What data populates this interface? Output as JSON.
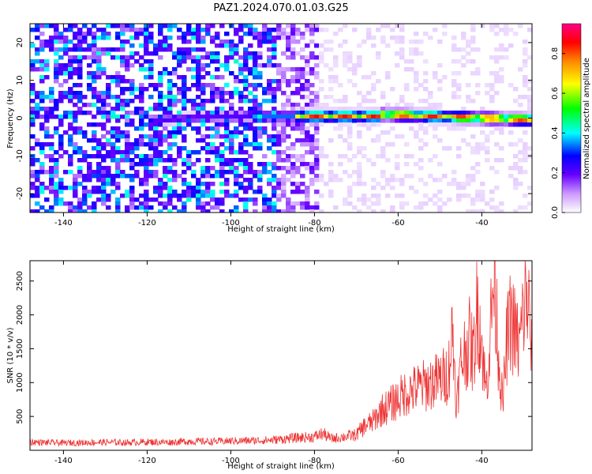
{
  "title": "PAZ1.2024.070.01.03.G25",
  "spectrogram": {
    "type": "heatmap",
    "xlabel": "Height of straight line (km)",
    "ylabel": "Frequency (Hz)",
    "xlim": [
      -148,
      -28
    ],
    "ylim": [
      -25,
      25
    ],
    "x_ticks": [
      -140,
      -120,
      -100,
      -80,
      -60,
      -40
    ],
    "y_ticks": [
      -20,
      -10,
      0,
      10,
      20
    ],
    "colorbar": {
      "label": "Normalized spectral amplitude",
      "range": [
        0.0,
        0.95
      ],
      "ticks": [
        0.0,
        0.2,
        0.4,
        0.6,
        0.8
      ],
      "tick_labels": [
        "0.0",
        "0.2",
        "0.4",
        "0.6",
        "0.8"
      ]
    }
  },
  "chart_data": {
    "type": "line",
    "title": "",
    "xlabel": "Height of straight line (km)",
    "ylabel": "SNR (10 * v/v)",
    "xlim": [
      -148,
      -28
    ],
    "ylim": [
      0,
      2800
    ],
    "x_ticks": [
      -140,
      -120,
      -100,
      -80,
      -60,
      -40
    ],
    "y_ticks": [
      500,
      1000,
      1500,
      2000,
      2500
    ],
    "color": "#ee3333",
    "series": [
      {
        "x": [
          -148,
          -145,
          -140,
          -135,
          -130,
          -125,
          -120,
          -115,
          -110,
          -105,
          -100,
          -95,
          -90,
          -85,
          -80,
          -78,
          -76,
          -74,
          -72,
          -70,
          -68,
          -66,
          -64,
          -62,
          -60,
          -58,
          -56,
          -54,
          -52,
          -50,
          -48,
          -47,
          -46,
          -45,
          -44,
          -43,
          -42,
          -41,
          -40,
          -39,
          -38,
          -37,
          -36,
          -35,
          -34,
          -33,
          -32,
          -31,
          -30,
          -29,
          -28
        ],
        "values": [
          130,
          120,
          115,
          120,
          125,
          120,
          130,
          125,
          140,
          135,
          145,
          150,
          160,
          190,
          210,
          260,
          180,
          200,
          220,
          240,
          380,
          450,
          620,
          700,
          800,
          900,
          950,
          1000,
          1050,
          1100,
          1200,
          1850,
          700,
          1350,
          1550,
          1700,
          1450,
          2300,
          1650,
          900,
          1800,
          2800,
          1500,
          700,
          1700,
          2050,
          1800,
          1600,
          2200,
          2400,
          1400
        ]
      }
    ]
  }
}
